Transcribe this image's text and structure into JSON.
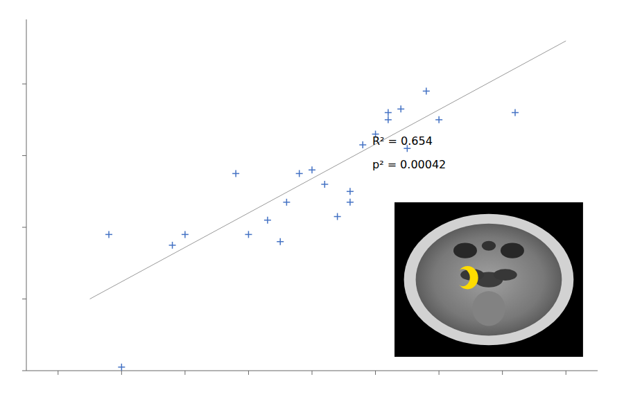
{
  "chart_data": {
    "type": "scatter",
    "tick_labels": false,
    "grid": false,
    "xlim": [
      0.05,
      0.95
    ],
    "ylim": [
      0.0,
      0.98
    ],
    "xticks": [
      0.1,
      0.2,
      0.3,
      0.4,
      0.5,
      0.6,
      0.7,
      0.8,
      0.9
    ],
    "yticks": [
      0.0,
      0.2,
      0.4,
      0.6,
      0.8
    ],
    "series": [
      {
        "type": "scatter",
        "color": "#4472C4",
        "marker": "plus",
        "x": [
          0.18,
          0.28,
          0.3,
          0.38,
          0.4,
          0.43,
          0.45,
          0.46,
          0.48,
          0.5,
          0.52,
          0.54,
          0.56,
          0.58,
          0.6,
          0.62,
          0.65,
          0.68,
          0.56,
          0.62,
          0.64,
          0.7,
          0.82,
          0.2
        ],
        "values": [
          0.38,
          0.35,
          0.38,
          0.55,
          0.38,
          0.42,
          0.36,
          0.47,
          0.55,
          0.56,
          0.52,
          0.43,
          0.5,
          0.63,
          0.66,
          0.72,
          0.62,
          0.78,
          0.47,
          0.7,
          0.73,
          0.7,
          0.72,
          0.01
        ]
      },
      {
        "type": "line",
        "color": "#999999",
        "x": [
          0.15,
          0.9
        ],
        "values": [
          0.2,
          0.92
        ]
      }
    ],
    "annotations": [
      {
        "text": "R² = 0.654",
        "x": 0.595,
        "y": 0.63
      },
      {
        "text": "p² = 0.00042",
        "x": 0.595,
        "y": 0.565
      }
    ]
  }
}
